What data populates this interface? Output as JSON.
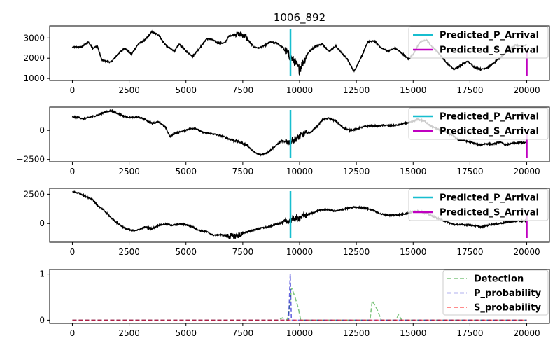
{
  "chart_data": {
    "title": "1006_892",
    "xlim": [
      -1000,
      21000
    ],
    "x_ticks": [
      0,
      2500,
      5000,
      7500,
      10000,
      12500,
      15000,
      17500,
      20000
    ],
    "x_tick_labels": [
      "0",
      "2500",
      "5000",
      "7500",
      "10000",
      "12500",
      "15000",
      "17500",
      "20000"
    ],
    "colors": {
      "waveform": "#000000",
      "p_arrival": "#17becf",
      "s_arrival": "#c000c0",
      "detection": "#2ca02c",
      "p_probability": "#0000cc",
      "s_probability": "#ff0000"
    },
    "panels": [
      {
        "type": "line",
        "ylim": [
          900,
          3600
        ],
        "y_ticks": [
          1000,
          2000,
          3000
        ],
        "y_tick_labels": [
          "1000",
          "2000",
          "3000"
        ],
        "trace_keypoints": [
          [
            0,
            2300
          ],
          [
            0,
            2550
          ],
          [
            400,
            2550
          ],
          [
            700,
            2800
          ],
          [
            900,
            2500
          ],
          [
            1100,
            2600
          ],
          [
            1300,
            1900
          ],
          [
            1500,
            1850
          ],
          [
            1700,
            1800
          ],
          [
            2000,
            2200
          ],
          [
            2300,
            2500
          ],
          [
            2600,
            2200
          ],
          [
            2900,
            2700
          ],
          [
            3200,
            2900
          ],
          [
            3500,
            3300
          ],
          [
            3800,
            3150
          ],
          [
            4000,
            2800
          ],
          [
            4200,
            2550
          ],
          [
            4500,
            2350
          ],
          [
            4700,
            2700
          ],
          [
            5000,
            2350
          ],
          [
            5300,
            2100
          ],
          [
            5600,
            2500
          ],
          [
            5900,
            2950
          ],
          [
            6100,
            2950
          ],
          [
            6400,
            2750
          ],
          [
            6700,
            2750
          ],
          [
            6900,
            3100
          ],
          [
            7300,
            3200
          ],
          [
            7600,
            3100
          ],
          [
            7800,
            2800
          ],
          [
            8000,
            2550
          ],
          [
            8200,
            2500
          ],
          [
            8500,
            2650
          ],
          [
            8700,
            2800
          ],
          [
            9000,
            2750
          ],
          [
            9300,
            2500
          ],
          [
            9500,
            2200
          ],
          [
            9800,
            1800
          ],
          [
            10000,
            1400
          ],
          [
            10100,
            1700
          ],
          [
            10400,
            2300
          ],
          [
            10700,
            2600
          ],
          [
            11000,
            2700
          ],
          [
            11300,
            2350
          ],
          [
            11600,
            2600
          ],
          [
            11900,
            2200
          ],
          [
            12100,
            1950
          ],
          [
            12400,
            1350
          ],
          [
            12600,
            1800
          ],
          [
            12800,
            2250
          ],
          [
            13000,
            2800
          ],
          [
            13300,
            2850
          ],
          [
            13600,
            2500
          ],
          [
            13900,
            2350
          ],
          [
            14200,
            2500
          ],
          [
            14500,
            2250
          ],
          [
            14800,
            1950
          ],
          [
            15000,
            2200
          ],
          [
            15300,
            2800
          ],
          [
            15600,
            2900
          ],
          [
            15800,
            2600
          ],
          [
            16000,
            2400
          ],
          [
            16200,
            2150
          ],
          [
            16500,
            1750
          ],
          [
            16800,
            1450
          ],
          [
            17100,
            1650
          ],
          [
            17400,
            1850
          ],
          [
            17700,
            1550
          ],
          [
            18000,
            1450
          ],
          [
            18300,
            1550
          ],
          [
            18600,
            1800
          ],
          [
            18900,
            2100
          ],
          [
            19200,
            2400
          ],
          [
            19500,
            2650
          ],
          [
            19800,
            2600
          ],
          [
            20000,
            2650
          ]
        ],
        "noise": [
          [
            7200,
            7700,
            120
          ],
          [
            9300,
            10300,
            220
          ]
        ],
        "arrivals": {
          "p": 9600,
          "s": 20000
        },
        "legend": [
          "Predicted_P_Arrival",
          "Predicted_S_Arrival"
        ]
      },
      {
        "type": "line",
        "ylim": [
          -2700,
          2000
        ],
        "y_ticks": [
          -2500,
          0
        ],
        "y_tick_labels": [
          "−2500",
          "0"
        ],
        "trace_keypoints": [
          [
            0,
            950
          ],
          [
            0,
            1150
          ],
          [
            300,
            1100
          ],
          [
            500,
            1000
          ],
          [
            800,
            1150
          ],
          [
            1100,
            1300
          ],
          [
            1400,
            1550
          ],
          [
            1700,
            1700
          ],
          [
            2000,
            1450
          ],
          [
            2300,
            1200
          ],
          [
            2600,
            1100
          ],
          [
            2900,
            1150
          ],
          [
            3200,
            950
          ],
          [
            3500,
            600
          ],
          [
            3800,
            750
          ],
          [
            4100,
            250
          ],
          [
            4300,
            -550
          ],
          [
            4500,
            -250
          ],
          [
            4800,
            -100
          ],
          [
            5100,
            100
          ],
          [
            5400,
            200
          ],
          [
            5700,
            -150
          ],
          [
            6000,
            -250
          ],
          [
            6300,
            -350
          ],
          [
            6600,
            -500
          ],
          [
            6900,
            -750
          ],
          [
            7200,
            -900
          ],
          [
            7500,
            -1100
          ],
          [
            7700,
            -1300
          ],
          [
            7900,
            -1700
          ],
          [
            8100,
            -2000
          ],
          [
            8300,
            -2100
          ],
          [
            8600,
            -1900
          ],
          [
            8900,
            -1400
          ],
          [
            9200,
            -900
          ],
          [
            9500,
            -1050
          ],
          [
            9800,
            -750
          ],
          [
            10200,
            -300
          ],
          [
            10500,
            -150
          ],
          [
            10800,
            400
          ],
          [
            11000,
            900
          ],
          [
            11300,
            1050
          ],
          [
            11600,
            800
          ],
          [
            11900,
            250
          ],
          [
            12200,
            0
          ],
          [
            12500,
            100
          ],
          [
            12800,
            300
          ],
          [
            13100,
            400
          ],
          [
            13400,
            350
          ],
          [
            13700,
            450
          ],
          [
            14000,
            400
          ],
          [
            14300,
            450
          ],
          [
            14600,
            600
          ],
          [
            14900,
            700
          ],
          [
            15200,
            950
          ],
          [
            15500,
            800
          ],
          [
            15800,
            350
          ],
          [
            16100,
            100
          ],
          [
            16400,
            -100
          ],
          [
            16700,
            -400
          ],
          [
            17000,
            -800
          ],
          [
            17300,
            -900
          ],
          [
            17600,
            -1050
          ],
          [
            17900,
            -1250
          ],
          [
            18200,
            -1150
          ],
          [
            18500,
            -1200
          ],
          [
            18800,
            -1000
          ],
          [
            19100,
            -1250
          ],
          [
            19400,
            -1100
          ],
          [
            19700,
            -1050
          ],
          [
            20000,
            -1050
          ]
        ],
        "noise": [
          [
            7000,
            7700,
            90
          ],
          [
            9400,
            10300,
            280
          ]
        ],
        "arrivals": {
          "p": 9600,
          "s": 20000
        },
        "legend": [
          "Predicted_P_Arrival",
          "Predicted_S_Arrival"
        ]
      },
      {
        "type": "line",
        "ylim": [
          -1600,
          3000
        ],
        "y_ticks": [
          0,
          2500
        ],
        "y_tick_labels": [
          "0",
          "2500"
        ],
        "trace_keypoints": [
          [
            0,
            2550
          ],
          [
            0,
            2700
          ],
          [
            300,
            2600
          ],
          [
            600,
            2300
          ],
          [
            900,
            2050
          ],
          [
            1100,
            1550
          ],
          [
            1400,
            1100
          ],
          [
            1700,
            500
          ],
          [
            2000,
            0
          ],
          [
            2300,
            -400
          ],
          [
            2600,
            -600
          ],
          [
            2900,
            -550
          ],
          [
            3200,
            -300
          ],
          [
            3500,
            -450
          ],
          [
            3800,
            -150
          ],
          [
            4100,
            -50
          ],
          [
            4400,
            -150
          ],
          [
            4700,
            -50
          ],
          [
            5000,
            -100
          ],
          [
            5300,
            -300
          ],
          [
            5600,
            -600
          ],
          [
            5900,
            -700
          ],
          [
            6200,
            -1000
          ],
          [
            6500,
            -950
          ],
          [
            6800,
            -1050
          ],
          [
            7100,
            -1100
          ],
          [
            7400,
            -950
          ],
          [
            7700,
            -700
          ],
          [
            8000,
            -550
          ],
          [
            8300,
            -400
          ],
          [
            8600,
            -300
          ],
          [
            8900,
            -100
          ],
          [
            9200,
            50
          ],
          [
            9500,
            200
          ],
          [
            9800,
            400
          ],
          [
            10200,
            650
          ],
          [
            10500,
            850
          ],
          [
            10900,
            1150
          ],
          [
            11200,
            1200
          ],
          [
            11600,
            1050
          ],
          [
            12000,
            1250
          ],
          [
            12400,
            1400
          ],
          [
            12800,
            1350
          ],
          [
            13200,
            1150
          ],
          [
            13600,
            800
          ],
          [
            14000,
            700
          ],
          [
            14400,
            750
          ],
          [
            14800,
            900
          ],
          [
            15200,
            1100
          ],
          [
            15600,
            850
          ],
          [
            16000,
            500
          ],
          [
            16400,
            200
          ],
          [
            16800,
            -100
          ],
          [
            17200,
            -100
          ],
          [
            17600,
            -150
          ],
          [
            18000,
            -300
          ],
          [
            18400,
            -100
          ],
          [
            18800,
            0
          ],
          [
            19200,
            150
          ],
          [
            19600,
            200
          ],
          [
            20000,
            250
          ]
        ],
        "noise": [
          [
            6800,
            7500,
            250
          ],
          [
            9300,
            10300,
            250
          ]
        ],
        "arrivals": {
          "p": 9600,
          "s": 20000
        },
        "legend": [
          "Predicted_P_Arrival",
          "Predicted_S_Arrival"
        ]
      },
      {
        "type": "line",
        "ylim": [
          -0.07,
          1.1
        ],
        "y_ticks": [
          0,
          1
        ],
        "y_tick_labels": [
          "0",
          "1"
        ],
        "series": [
          {
            "name": "Detection",
            "color": "#2ca02c",
            "points": [
              [
                0,
                0
              ],
              [
                9050,
                0
              ],
              [
                9250,
                0.05
              ],
              [
                9450,
                0
              ],
              [
                9550,
                0.25
              ],
              [
                9650,
                0.7
              ],
              [
                9800,
                0.5
              ],
              [
                9950,
                0.25
              ],
              [
                10050,
                0
              ],
              [
                13100,
                0
              ],
              [
                13200,
                0.42
              ],
              [
                13400,
                0.25
              ],
              [
                13600,
                0
              ],
              [
                14250,
                0
              ],
              [
                14350,
                0.12
              ],
              [
                14500,
                0
              ],
              [
                20000,
                0
              ]
            ]
          },
          {
            "name": "P_probability",
            "color": "#0000cc",
            "points": [
              [
                0,
                0
              ],
              [
                9520,
                0
              ],
              [
                9590,
                1.0
              ],
              [
                9640,
                0
              ],
              [
                20000,
                0
              ]
            ]
          },
          {
            "name": "S_probability",
            "color": "#ff0000",
            "points": [
              [
                0,
                0
              ],
              [
                20000,
                0
              ]
            ]
          }
        ],
        "legend": [
          "Detection",
          "P_probability",
          "S_probability"
        ]
      }
    ]
  }
}
